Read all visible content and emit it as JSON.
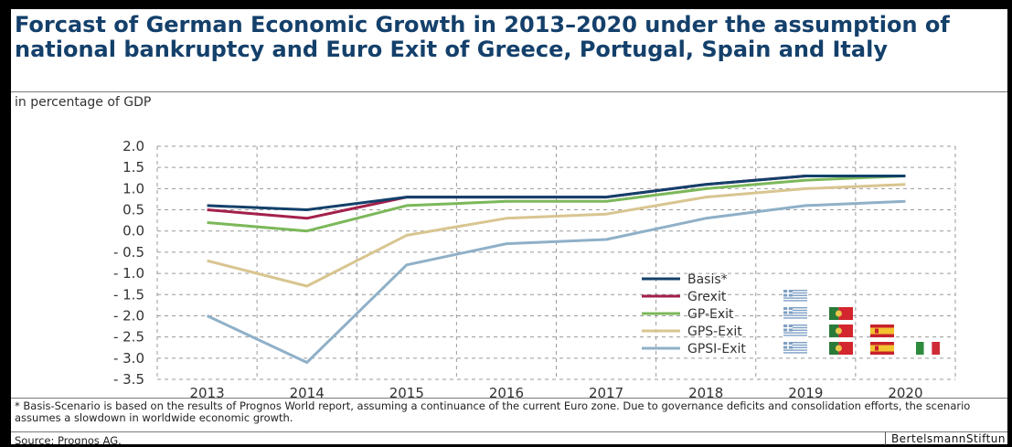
{
  "header": {
    "title": "Forcast of German Economic Growth in 2013–2020 under the assumption of national bankruptcy and Euro Exit of Greece, Portugal, Spain and Italy",
    "subtitle": "in percentage of GDP"
  },
  "footer": {
    "footnote": "* Basis-Scenario is based on the results of Prognos World report, assuming a continuance of the current Euro zone. Due to governance deficits and consolidation efforts, the scenario assumes a slowdown in worldwide economic growth.",
    "source": "Source: Prognos AG.",
    "brand": "BertelsmannStiftun"
  },
  "chart_data": {
    "type": "line",
    "title": "",
    "xlabel": "",
    "ylabel": "",
    "x": [
      "2013",
      "2014",
      "2015",
      "2016",
      "2017",
      "2018",
      "2019",
      "2020"
    ],
    "ylim": [
      -3.5,
      2.0
    ],
    "yticks": [
      "2.0",
      "1.5",
      "1.0",
      "0.5",
      "0.0",
      "- 0.5",
      "- 1.0",
      "- 1.5",
      "- 2.0",
      "- 2.5",
      "- 3.0",
      "- 3.5"
    ],
    "grid": "dashed",
    "legend_position": "bottom-right",
    "series": [
      {
        "name": "Basis*",
        "color": "#13406b",
        "values": [
          0.6,
          0.5,
          0.8,
          0.8,
          0.8,
          1.1,
          1.3,
          1.3
        ],
        "flags": []
      },
      {
        "name": "Grexit",
        "color": "#a3204a",
        "values": [
          0.5,
          0.3,
          0.8,
          0.8,
          0.8,
          1.1,
          1.3,
          1.3
        ],
        "flags": [
          "greece-flag-icon"
        ]
      },
      {
        "name": "GP-Exit",
        "color": "#7cb85a",
        "values": [
          0.2,
          0.0,
          0.6,
          0.7,
          0.7,
          1.0,
          1.2,
          1.3
        ],
        "flags": [
          "greece-flag-icon",
          "portugal-flag-icon"
        ]
      },
      {
        "name": "GPS-Exit",
        "color": "#d8c590",
        "values": [
          -0.7,
          -1.3,
          -0.1,
          0.3,
          0.4,
          0.8,
          1.0,
          1.1
        ],
        "flags": [
          "greece-flag-icon",
          "portugal-flag-icon",
          "spain-flag-icon"
        ]
      },
      {
        "name": "GPSI-Exit",
        "color": "#8fb0c8",
        "values": [
          -2.0,
          -3.1,
          -0.8,
          -0.3,
          -0.2,
          0.3,
          0.6,
          0.7
        ],
        "flags": [
          "greece-flag-icon",
          "portugal-flag-icon",
          "spain-flag-icon",
          "italy-flag-icon"
        ]
      }
    ]
  }
}
